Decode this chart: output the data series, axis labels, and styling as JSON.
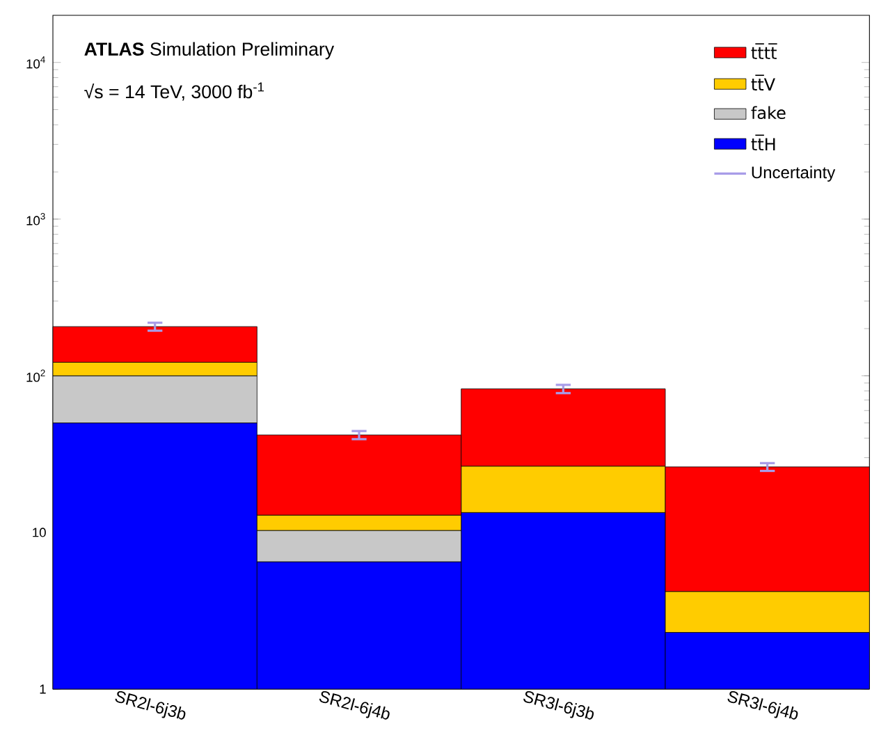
{
  "chart_data": {
    "type": "bar",
    "stacked": true,
    "log": "y",
    "title": "**ATLAS** Simulation Preliminary",
    "subtitle": "√s = 14 TeV, 3000 fb$^{-1}$",
    "categories": [
      "SR2l-6j3b",
      "SR2l-6j4b",
      "SR3l-6j3b",
      "SR3l-6j4b"
    ],
    "series": [
      {
        "name": "tt̅H",
        "color": "#0000ff",
        "values": [
          50,
          6.5,
          13.4,
          2.3
        ]
      },
      {
        "name": "fake",
        "color": "#c8c8c8",
        "values": [
          50,
          3.8,
          null,
          null
        ]
      },
      {
        "name": "tt̅V",
        "color": "#ffcc00",
        "values": [
          22,
          2.6,
          13.1,
          1.9
        ]
      },
      {
        "name": "tt̅tt̅",
        "color": "#ff0000",
        "values": [
          84,
          29,
          56,
          22
        ],
        "errors": [
          12,
          2.5,
          5,
          1.5
        ]
      }
    ],
    "annotations": [
      "Uncertainty"
    ],
    "ylim": [
      1,
      20000
    ],
    "yticks": [
      1,
      10,
      {
        "value": 100,
        "label": "10$^{2}$"
      },
      {
        "value": 1000,
        "label": "10$^{3}$"
      },
      {
        "value": 10000,
        "label": "10$^{4}$"
      }
    ],
    "grid": false,
    "legend": "top right"
  }
}
